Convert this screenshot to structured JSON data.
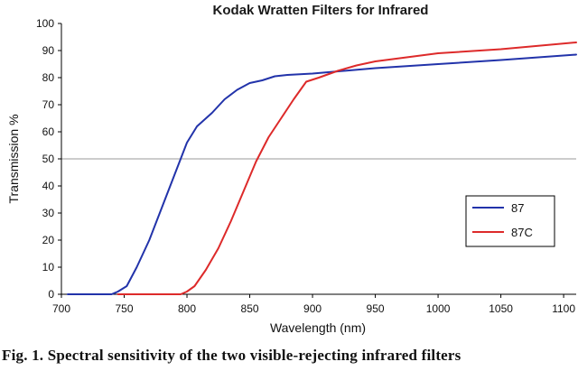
{
  "chart_data": {
    "type": "line",
    "title": "Kodak Wratten Filters for Infrared",
    "xlabel": "Wavelength (nm)",
    "ylabel": "Transmission %",
    "xlim": [
      700,
      1110
    ],
    "ylim": [
      0,
      100
    ],
    "xticks": [
      700,
      750,
      800,
      850,
      900,
      950,
      1000,
      1050,
      1100
    ],
    "yticks": [
      0,
      10,
      20,
      30,
      40,
      50,
      60,
      70,
      80,
      90,
      100
    ],
    "gridlines_y": [
      50
    ],
    "legend_position": "right",
    "series": [
      {
        "name": "87",
        "color": "#2233aa",
        "points": [
          [
            705,
            0
          ],
          [
            740,
            0
          ],
          [
            745,
            1
          ],
          [
            752,
            3
          ],
          [
            760,
            10
          ],
          [
            770,
            20
          ],
          [
            780,
            32
          ],
          [
            790,
            44
          ],
          [
            800,
            56
          ],
          [
            808,
            62
          ],
          [
            820,
            67
          ],
          [
            830,
            72
          ],
          [
            840,
            75.5
          ],
          [
            850,
            78
          ],
          [
            860,
            79
          ],
          [
            870,
            80.5
          ],
          [
            880,
            81
          ],
          [
            900,
            81.5
          ],
          [
            950,
            83.5
          ],
          [
            1000,
            85
          ],
          [
            1050,
            86.5
          ],
          [
            1110,
            88.5
          ]
        ]
      },
      {
        "name": "87C",
        "color": "#dd2a2a",
        "points": [
          [
            745,
            0
          ],
          [
            795,
            0
          ],
          [
            800,
            1
          ],
          [
            806,
            3
          ],
          [
            815,
            9
          ],
          [
            825,
            17
          ],
          [
            835,
            27
          ],
          [
            845,
            38
          ],
          [
            855,
            49
          ],
          [
            865,
            58
          ],
          [
            875,
            65
          ],
          [
            885,
            72
          ],
          [
            895,
            78.5
          ],
          [
            905,
            80
          ],
          [
            920,
            82.5
          ],
          [
            935,
            84.5
          ],
          [
            950,
            86
          ],
          [
            975,
            87.5
          ],
          [
            1000,
            89
          ],
          [
            1050,
            90.5
          ],
          [
            1110,
            93
          ]
        ]
      }
    ]
  },
  "caption": "Fig. 1. Spectral sensitivity of the two visible-rejecting infrared filters"
}
